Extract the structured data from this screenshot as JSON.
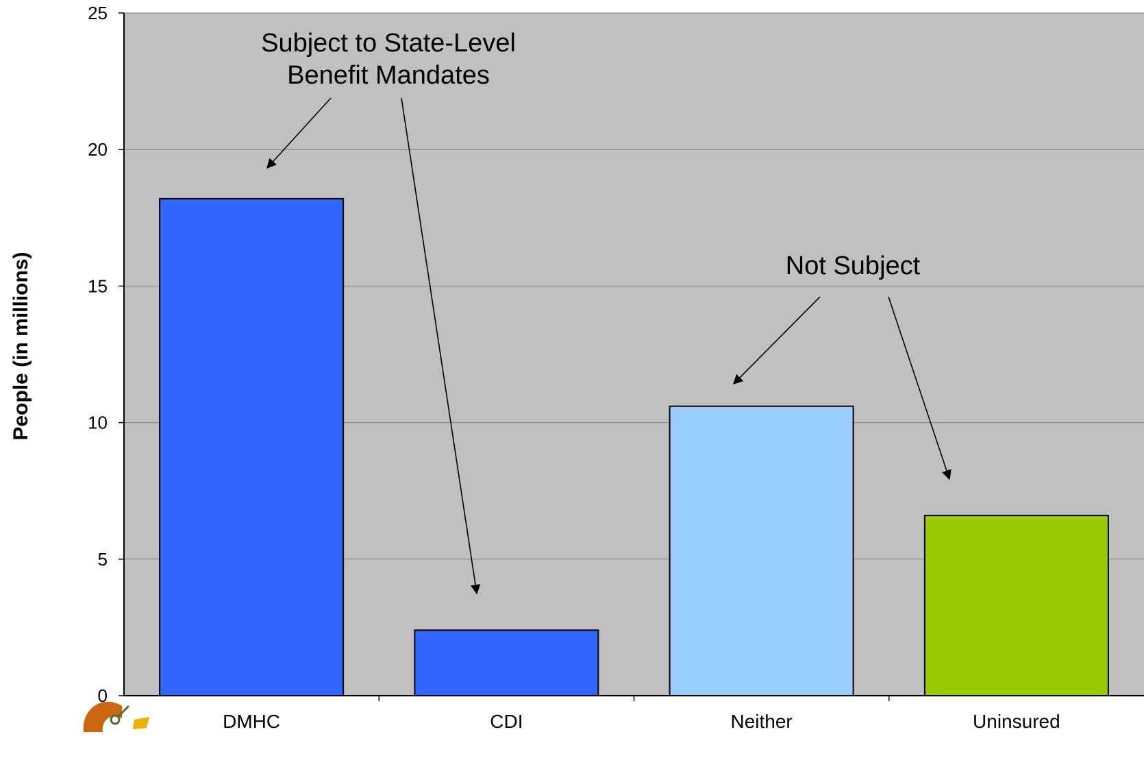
{
  "chart_data": {
    "type": "bar",
    "categories": [
      "DMHC",
      "CDI",
      "Neither",
      "Uninsured"
    ],
    "values": [
      18.2,
      2.4,
      10.6,
      6.6
    ],
    "bar_colors": [
      "#3366ff",
      "#3366ff",
      "#99ccff",
      "#99cc00"
    ],
    "plot_background": "#c0c0c0",
    "ylabel": "People (in millions)",
    "xlabel": "",
    "ylim": [
      0,
      25
    ],
    "yticks": [
      0,
      5,
      10,
      15,
      20,
      25
    ],
    "grid": true,
    "legend": "none",
    "annotations": [
      {
        "lines": [
          "Subject to State-Level",
          "Benefit Mandates"
        ],
        "points_to": [
          "DMHC",
          "CDI"
        ]
      },
      {
        "lines": [
          "Not Subject"
        ],
        "points_to": [
          "Neither",
          "Uninsured"
        ]
      }
    ]
  },
  "logo": {
    "icon": "organization-logo-icon"
  }
}
